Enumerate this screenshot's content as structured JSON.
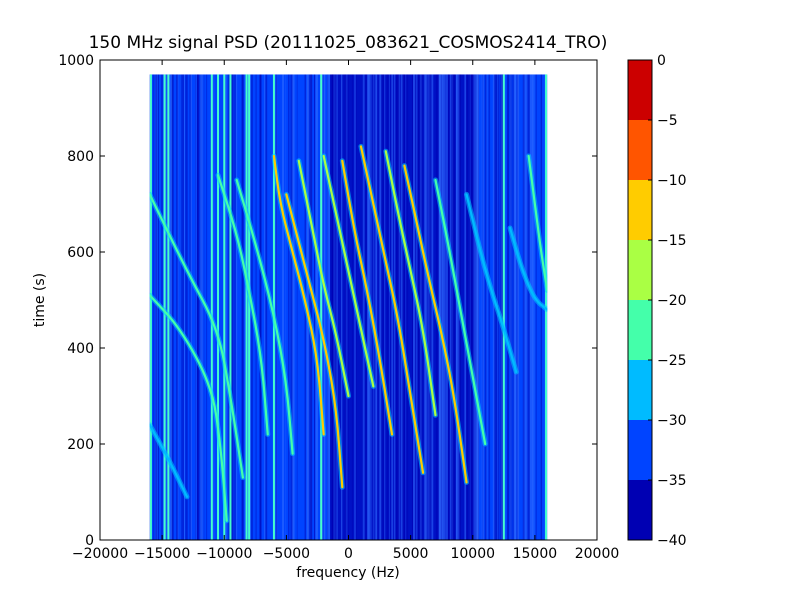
{
  "chart_data": {
    "type": "heatmap",
    "title": "150 MHz signal PSD (20111025_083621_COSMOS2414_TRO)",
    "xlabel": "frequency (Hz)",
    "ylabel": "time (s)",
    "xlim": [
      -20000,
      20000
    ],
    "ylim": [
      0,
      1000
    ],
    "xticks": [
      -20000,
      -15000,
      -10000,
      -5000,
      0,
      5000,
      10000,
      15000,
      20000
    ],
    "xtick_labels": [
      "−20000",
      "−15000",
      "−10000",
      "−5000",
      "0",
      "5000",
      "10000",
      "15000",
      "20000"
    ],
    "yticks": [
      0,
      200,
      400,
      600,
      800,
      1000
    ],
    "ytick_labels": [
      "0",
      "200",
      "400",
      "600",
      "800",
      "1000"
    ],
    "data_extent": {
      "x": [
        -16000,
        16000
      ],
      "y": [
        0,
        970
      ]
    },
    "colorbar": {
      "levels": [
        -40,
        -35,
        -30,
        -25,
        -20,
        -15,
        -10,
        -5,
        0
      ],
      "tick_labels": [
        "−40",
        "−35",
        "−30",
        "−25",
        "−20",
        "−15",
        "−10",
        "−5",
        "0"
      ],
      "colors": [
        "#0000b3",
        "#0044ff",
        "#00bbff",
        "#44ffaa",
        "#aaff44",
        "#ffcc00",
        "#ff5500",
        "#cc0000"
      ]
    },
    "stationary_lines_hz": [
      -15900,
      -14800,
      -14500,
      -11000,
      -10500,
      -10000,
      -9500,
      -8200,
      -8000,
      -6000,
      -2200,
      12500,
      15900
    ],
    "tracks": [
      {
        "name": "",
        "x": [
          -16000,
          -13000,
          -10500,
          -9500,
          -8500
        ],
        "y": [
          720,
          560,
          440,
          300,
          130
        ],
        "level": -25
      },
      {
        "name": "",
        "x": [
          -16000,
          -13500,
          -11000,
          -10300,
          -9800
        ],
        "y": [
          510,
          440,
          320,
          200,
          40
        ],
        "level": -25
      },
      {
        "name": "",
        "x": [
          -16000,
          -14500,
          -13000
        ],
        "y": [
          240,
          170,
          90
        ],
        "level": -30
      },
      {
        "name": "",
        "x": [
          -10500,
          -9000,
          -8000,
          -7000,
          -6500
        ],
        "y": [
          760,
          640,
          520,
          380,
          220
        ],
        "level": -25
      },
      {
        "name": "",
        "x": [
          -9000,
          -7500,
          -6000,
          -5000,
          -4500
        ],
        "y": [
          750,
          620,
          470,
          330,
          180
        ],
        "level": -25
      },
      {
        "name": "",
        "x": [
          -6000,
          -5500,
          -4500,
          -3500,
          -2500,
          -2000
        ],
        "y": [
          800,
          700,
          600,
          500,
          380,
          220
        ],
        "level": -15
      },
      {
        "name": "",
        "x": [
          -5000,
          -4000,
          -3000,
          -2000,
          -1000,
          -500
        ],
        "y": [
          720,
          620,
          520,
          420,
          280,
          110
        ],
        "level": -15
      },
      {
        "name": "",
        "x": [
          -4000,
          -3000,
          -2000,
          -1000,
          0
        ],
        "y": [
          790,
          660,
          530,
          430,
          300
        ],
        "level": -20
      },
      {
        "name": "",
        "x": [
          -2000,
          -1000,
          0,
          1000,
          2000
        ],
        "y": [
          800,
          680,
          560,
          440,
          320
        ],
        "level": -20
      },
      {
        "name": "",
        "x": [
          -500,
          500,
          1500,
          2500,
          3500
        ],
        "y": [
          790,
          640,
          520,
          380,
          220
        ],
        "level": -15
      },
      {
        "name": "",
        "x": [
          1000,
          2000,
          3000,
          4000,
          5000,
          6000
        ],
        "y": [
          820,
          700,
          580,
          460,
          300,
          140
        ],
        "level": -15
      },
      {
        "name": "",
        "x": [
          3000,
          4000,
          5000,
          6000,
          7000
        ],
        "y": [
          810,
          680,
          560,
          440,
          260
        ],
        "level": -20
      },
      {
        "name": "",
        "x": [
          4500,
          5500,
          6500,
          7500,
          8500,
          9500
        ],
        "y": [
          780,
          660,
          540,
          430,
          300,
          120
        ],
        "level": -15
      },
      {
        "name": "",
        "x": [
          7000,
          8000,
          9000,
          10000,
          11000
        ],
        "y": [
          750,
          620,
          480,
          340,
          200
        ],
        "level": -25
      },
      {
        "name": "",
        "x": [
          9500,
          11000,
          12500,
          13500
        ],
        "y": [
          720,
          560,
          440,
          350
        ],
        "level": -30
      },
      {
        "name": "",
        "x": [
          14500,
          15000,
          15500,
          16000
        ],
        "y": [
          800,
          700,
          600,
          520
        ],
        "level": -25
      },
      {
        "name": "",
        "x": [
          13000,
          14000,
          15000,
          16000
        ],
        "y": [
          650,
          560,
          500,
          480
        ],
        "level": -30
      }
    ]
  }
}
